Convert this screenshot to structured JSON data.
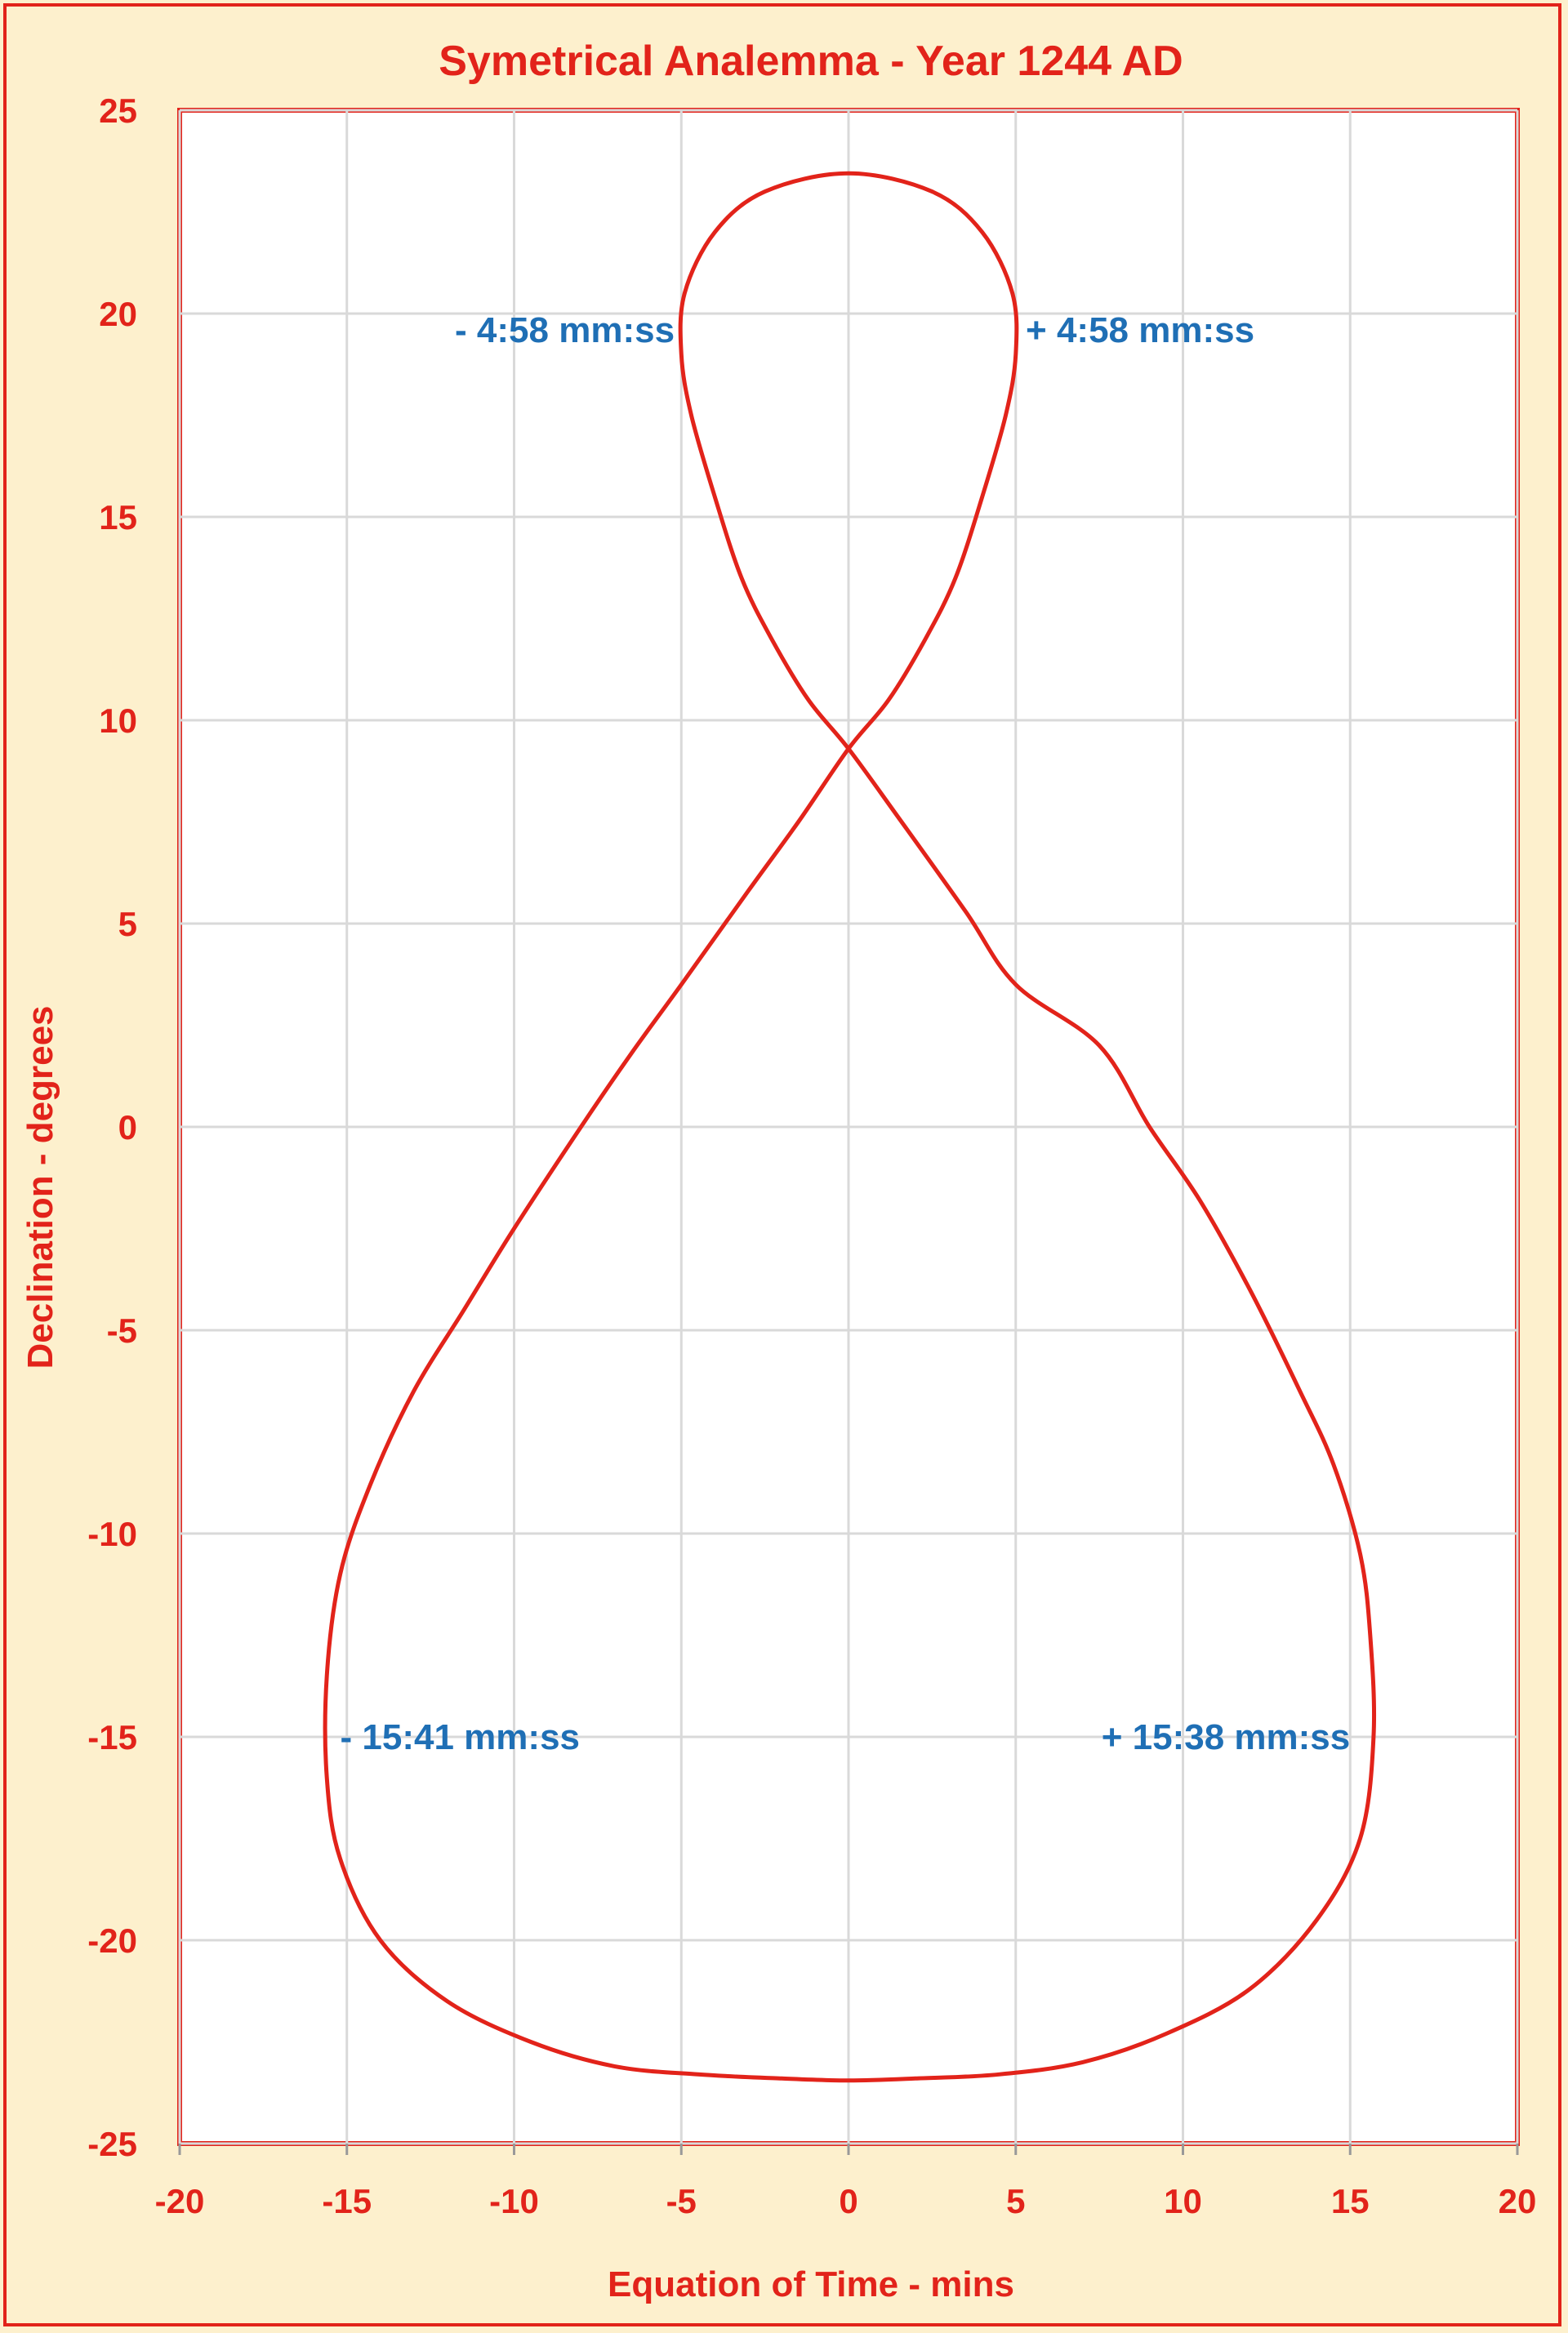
{
  "chart_data": {
    "type": "line",
    "title": "Symetrical Analemma - Year 1244 AD",
    "xlabel": "Equation of Time - mins",
    "ylabel": "Declination - degrees",
    "xlim": [
      -20,
      20
    ],
    "ylim": [
      -25,
      25
    ],
    "xticks": [
      "-20",
      "-15",
      "-10",
      "-5",
      "0",
      "5",
      "10",
      "15",
      "20"
    ],
    "yticks": [
      "25",
      "20",
      "15",
      "10",
      "5",
      "0",
      "-5",
      "-10",
      "-15",
      "-20",
      "-25"
    ],
    "grid": true,
    "legend": "none",
    "series": [
      {
        "color": "#e2231a",
        "x": [
          0,
          2.5,
          4.0,
          4.9,
          5.0,
          4.7,
          4.0,
          3.2,
          2.3,
          1.2,
          0,
          -1.5,
          -3.0,
          -5.0,
          -6.5,
          -8.0,
          -10.0,
          -11.5,
          -13.0,
          -14.3,
          -15.2,
          -15.6,
          -15.6,
          -15.2,
          -14.0,
          -12.0,
          -9.5,
          -7.0,
          -4.5,
          -2.0,
          0,
          2.0,
          4.5,
          7.0,
          9.5,
          12.0,
          14.0,
          15.3,
          15.7,
          15.6,
          15.3,
          14.5,
          13.5,
          12.0,
          10.5,
          9.0,
          7.5,
          5.0,
          3.5,
          1.5,
          0,
          -1.2,
          -2.3,
          -3.2,
          -4.0,
          -4.7,
          -5.0,
          -4.9,
          -4.0,
          -2.5,
          0
        ],
        "y": [
          23.45,
          23.0,
          22.0,
          20.5,
          19.0,
          17.5,
          15.5,
          13.5,
          12.0,
          10.5,
          9.3,
          7.5,
          5.8,
          3.5,
          1.8,
          0.0,
          -2.5,
          -4.5,
          -6.5,
          -8.8,
          -11.0,
          -13.5,
          -16.0,
          -18.0,
          -20.0,
          -21.5,
          -22.5,
          -23.1,
          -23.3,
          -23.4,
          -23.45,
          -23.4,
          -23.3,
          -23.0,
          -22.3,
          -21.2,
          -19.5,
          -17.5,
          -15.0,
          -12.5,
          -10.5,
          -8.3,
          -6.5,
          -4.0,
          -1.8,
          0.0,
          2.0,
          3.5,
          5.3,
          7.6,
          9.3,
          10.5,
          12.0,
          13.5,
          15.5,
          17.5,
          19.0,
          20.5,
          22.0,
          23.0,
          23.45
        ]
      }
    ],
    "annotations": [
      {
        "text": "- 4:58 mm:ss",
        "x": -5.2,
        "y": 19.6,
        "anchor": "end"
      },
      {
        "text": "+ 4:58 mm:ss",
        "x": 5.3,
        "y": 19.6,
        "anchor": "start"
      },
      {
        "text": "- 15:41 mm:ss",
        "x": -15.2,
        "y": -15.0,
        "anchor": "start"
      },
      {
        "text": "+ 15:38 mm:ss",
        "x": 15.0,
        "y": -15.0,
        "anchor": "end"
      }
    ],
    "colors": {
      "background": "#fdf0cd",
      "plot_background": "#ffffff",
      "accent": "#e2231a",
      "annotation": "#1f6fb5",
      "grid": "#d9d9d9"
    }
  }
}
